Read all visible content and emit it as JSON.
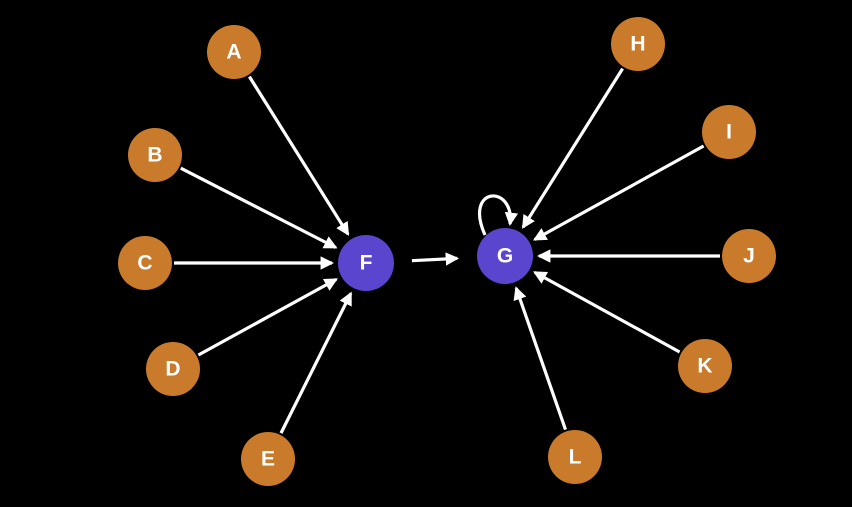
{
  "diagram": {
    "colors": {
      "background": "#000000",
      "source_node": "#c97a2b",
      "target_node": "#5a45cf",
      "edge": "#ffffff",
      "label": "#ffffff"
    },
    "nodes": [
      {
        "id": "A",
        "label": "A",
        "kind": "source"
      },
      {
        "id": "B",
        "label": "B",
        "kind": "source"
      },
      {
        "id": "C",
        "label": "C",
        "kind": "source"
      },
      {
        "id": "D",
        "label": "D",
        "kind": "source"
      },
      {
        "id": "E",
        "label": "E",
        "kind": "source"
      },
      {
        "id": "F",
        "label": "F",
        "kind": "hub"
      },
      {
        "id": "G",
        "label": "G",
        "kind": "hub"
      },
      {
        "id": "H",
        "label": "H",
        "kind": "source"
      },
      {
        "id": "I",
        "label": "I",
        "kind": "source"
      },
      {
        "id": "J",
        "label": "J",
        "kind": "source"
      },
      {
        "id": "K",
        "label": "K",
        "kind": "source"
      },
      {
        "id": "L",
        "label": "L",
        "kind": "source"
      }
    ],
    "edges": [
      {
        "from": "A",
        "to": "F"
      },
      {
        "from": "B",
        "to": "F"
      },
      {
        "from": "C",
        "to": "F"
      },
      {
        "from": "D",
        "to": "F"
      },
      {
        "from": "E",
        "to": "F"
      },
      {
        "from": "F",
        "to": "G"
      },
      {
        "from": "G",
        "to": "G"
      },
      {
        "from": "H",
        "to": "G"
      },
      {
        "from": "I",
        "to": "G"
      },
      {
        "from": "J",
        "to": "G"
      },
      {
        "from": "K",
        "to": "G"
      },
      {
        "from": "L",
        "to": "G"
      }
    ]
  }
}
